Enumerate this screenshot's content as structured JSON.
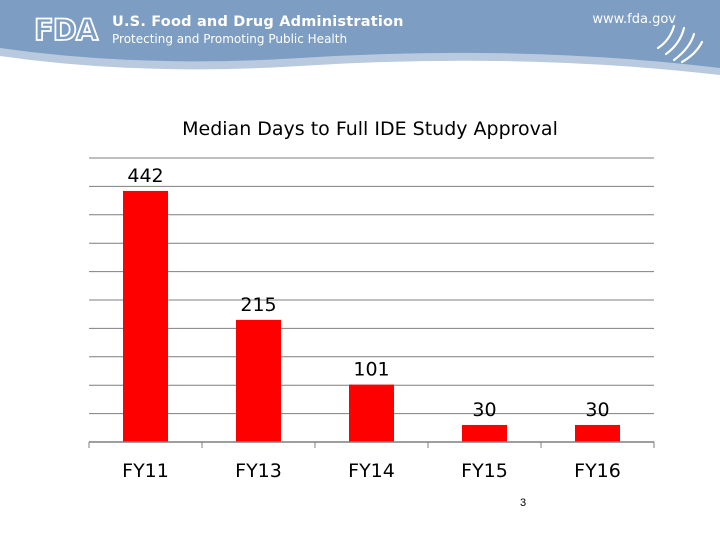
{
  "header": {
    "logo_text": "FDA",
    "agency_name": "U.S. Food and Drug Administration",
    "tagline": "Protecting and Promoting Public Health",
    "website": "www.fda.gov",
    "colors": {
      "banner": "#7d9dc2",
      "banner_light": "#b7c9de"
    }
  },
  "chart_data": {
    "type": "bar",
    "title": "Median Days to Full IDE Study Approval",
    "categories": [
      "FY11",
      "FY13",
      "FY14",
      "FY15",
      "FY16"
    ],
    "values": [
      442,
      215,
      101,
      30,
      30
    ],
    "value_labels": [
      "442",
      "215",
      "101",
      "30",
      "30"
    ],
    "xlabel": "",
    "ylabel": "",
    "ylim": [
      0,
      500
    ],
    "grid": true,
    "bar_color": "#ff0000"
  },
  "footer": {
    "page_number": "3"
  }
}
